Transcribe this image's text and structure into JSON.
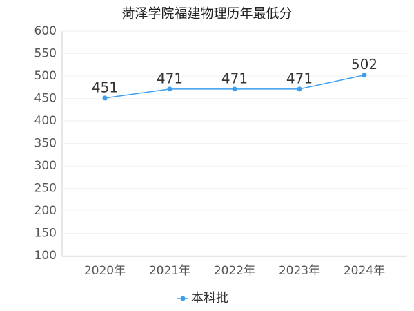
{
  "chart_data": {
    "type": "line",
    "title": "菏泽学院福建物理历年最低分",
    "categories": [
      "2020年",
      "2021年",
      "2022年",
      "2023年",
      "2024年"
    ],
    "series": [
      {
        "name": "本科批",
        "color": "#3d9ef0",
        "values": [
          451,
          471,
          471,
          471,
          502
        ]
      }
    ],
    "ylim": [
      100,
      600
    ],
    "yticks": [
      100,
      150,
      200,
      250,
      300,
      350,
      400,
      450,
      500,
      550,
      600
    ],
    "grid": true,
    "legend": "bottom"
  }
}
